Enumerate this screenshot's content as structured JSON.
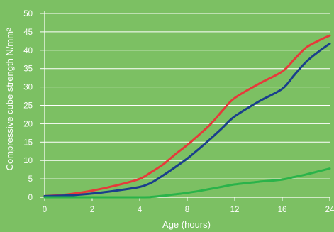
{
  "chart_data": {
    "type": "line",
    "title": "",
    "xlabel": "Age (hours)",
    "ylabel": "Compressive cube strength N/mm²",
    "x_ticks": [
      "0",
      "2",
      "4",
      "8",
      "12",
      "16",
      "24"
    ],
    "y_ticks": [
      "0",
      "5",
      "10",
      "15",
      "20",
      "25",
      "30",
      "35",
      "40",
      "45",
      "50"
    ],
    "ylim": [
      0,
      50
    ],
    "grid": true,
    "legend": "none",
    "series": [
      {
        "color": "#e63a3a",
        "x": [
          0,
          1,
          2,
          3,
          4,
          5,
          6,
          7,
          8,
          9,
          10,
          11,
          12,
          14,
          16,
          18,
          20,
          22,
          24
        ],
        "y": [
          0.3,
          0.8,
          1.8,
          3.2,
          5.0,
          6.9,
          9.0,
          11.7,
          14.2,
          17.0,
          20.0,
          23.7,
          27.0,
          30.8,
          34.2,
          37.5,
          40.7,
          42.5,
          44.0
        ]
      },
      {
        "color": "#1a3f8c",
        "x": [
          0,
          1,
          2,
          3,
          4,
          5,
          6,
          7,
          8,
          9,
          10,
          11,
          12,
          14,
          16,
          18,
          20,
          22,
          24
        ],
        "y": [
          0.3,
          0.5,
          1.0,
          1.8,
          2.8,
          4.0,
          6.0,
          8.2,
          10.5,
          13.2,
          16.0,
          19.0,
          22.0,
          26.0,
          29.5,
          33.2,
          36.8,
          39.5,
          41.8
        ]
      },
      {
        "color": "#2ab34a",
        "x": [
          0,
          4,
          5,
          6,
          7,
          8,
          9,
          10,
          11,
          12,
          14,
          16,
          18,
          20,
          22,
          24
        ],
        "y": [
          0,
          0,
          0.1,
          0.4,
          0.8,
          1.2,
          1.7,
          2.3,
          2.9,
          3.5,
          4.2,
          4.8,
          5.5,
          6.2,
          7.0,
          7.8
        ]
      }
    ]
  },
  "colors": {
    "background": "#7cc063",
    "grid": "#ffffff",
    "text": "#ffffff"
  }
}
